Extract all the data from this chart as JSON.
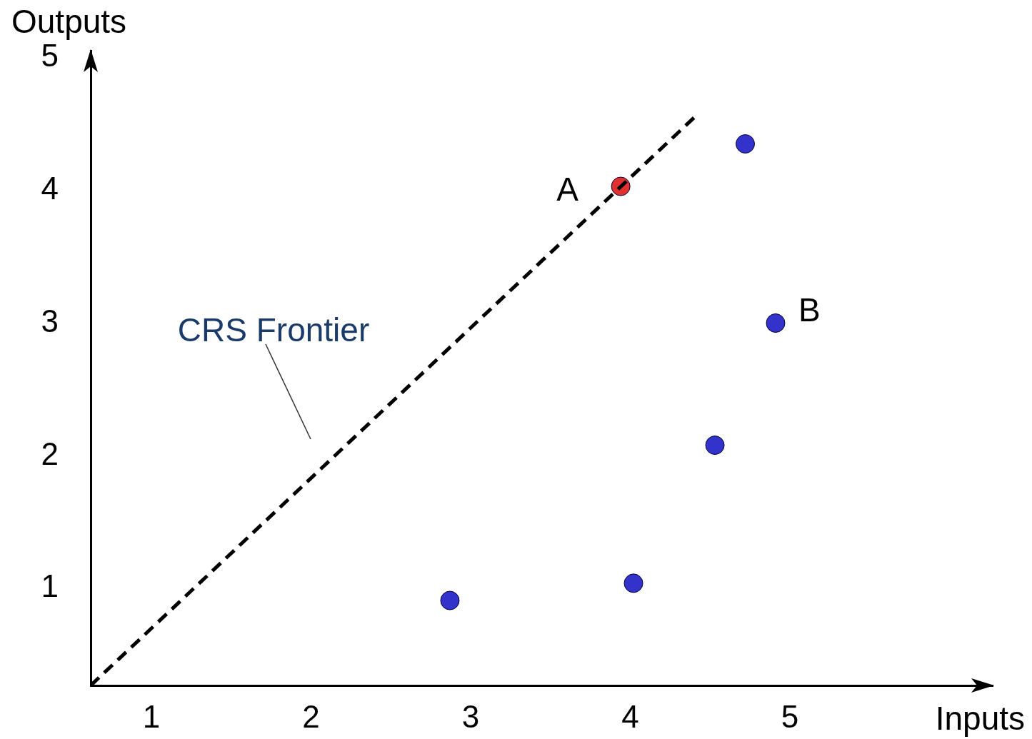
{
  "chart_data": {
    "type": "scatter",
    "xlabel": "Inputs",
    "ylabel": "Outputs",
    "xlim": [
      0.62,
      6.27
    ],
    "ylim": [
      0.27,
      5.05
    ],
    "xticks": [
      1,
      2,
      3,
      4,
      5
    ],
    "yticks": [
      1,
      2,
      3,
      4,
      5
    ],
    "grid": false,
    "legend": false,
    "marker": "circle",
    "series": [
      {
        "type": "line",
        "color": "#000000",
        "line_style": "dashed",
        "marker": "none",
        "x": [
          0.62,
          4.41
        ],
        "values": [
          0.27,
          4.56
        ]
      },
      {
        "color": "#3333cc",
        "x": [
          2.87,
          4.02,
          4.53,
          4.91,
          4.72
        ],
        "values": [
          0.91,
          1.04,
          2.08,
          3.0,
          4.35
        ]
      },
      {
        "color": "#e03030",
        "x": [
          3.94
        ],
        "values": [
          4.03
        ]
      }
    ],
    "annotations": [
      {
        "text": "A",
        "x": 3.94,
        "y": 4.03
      },
      {
        "text": "B",
        "x": 4.91,
        "y": 3.0
      },
      "CRS Frontier"
    ]
  }
}
